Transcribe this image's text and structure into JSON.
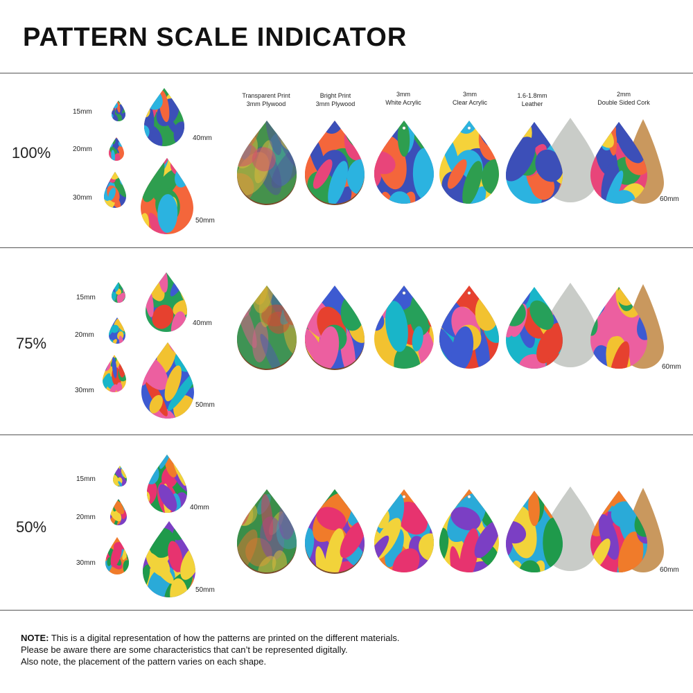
{
  "title": "PATTERN SCALE INDICATOR",
  "materials": [
    {
      "line1": "Transparent Print",
      "line2": "3mm Plywood",
      "kind": "plywood-transparent"
    },
    {
      "line1": "Bright Print",
      "line2": "3mm Plywood",
      "kind": "plywood-bright"
    },
    {
      "line1": "3mm",
      "line2": "White Acrylic",
      "kind": "acrylic-white"
    },
    {
      "line1": "3mm",
      "line2": "Clear Acrylic",
      "kind": "acrylic-clear"
    },
    {
      "line1": "1.6-1.8mm",
      "line2": "Leather",
      "kind": "leather"
    },
    {
      "line1": "2mm",
      "line2": "Double Sided Cork",
      "kind": "cork"
    }
  ],
  "sizes": {
    "s15": "15mm",
    "s20": "20mm",
    "s30": "30mm",
    "s40": "40mm",
    "s50": "50mm",
    "s60": "60mm"
  },
  "scales": [
    {
      "label": "100%",
      "palette": [
        "#2e9e4f",
        "#f4663b",
        "#3c4fb8",
        "#f5d23a",
        "#2bb3e0",
        "#e8457a"
      ]
    },
    {
      "label": "75%",
      "palette": [
        "#26a05a",
        "#3d5ad1",
        "#f2c230",
        "#e6412f",
        "#19b5c9",
        "#ec5fa0"
      ]
    },
    {
      "label": "50%",
      "palette": [
        "#1f9a4b",
        "#7b3fc4",
        "#f07b2a",
        "#f2d33a",
        "#2aaad8",
        "#e7336f"
      ]
    }
  ],
  "note": {
    "bold": "NOTE:",
    "line1": " This is a digital representation of how the patterns are printed on the different materials.",
    "line2": "Please be aware there are some characteristics that can’t be represented digitally.",
    "line3": "Also note, the placement of the pattern varies on each shape."
  },
  "colors": {
    "leather": "#c9ccc8",
    "cork": "#c9985e",
    "plywood_edge": "#7a4a2a"
  }
}
